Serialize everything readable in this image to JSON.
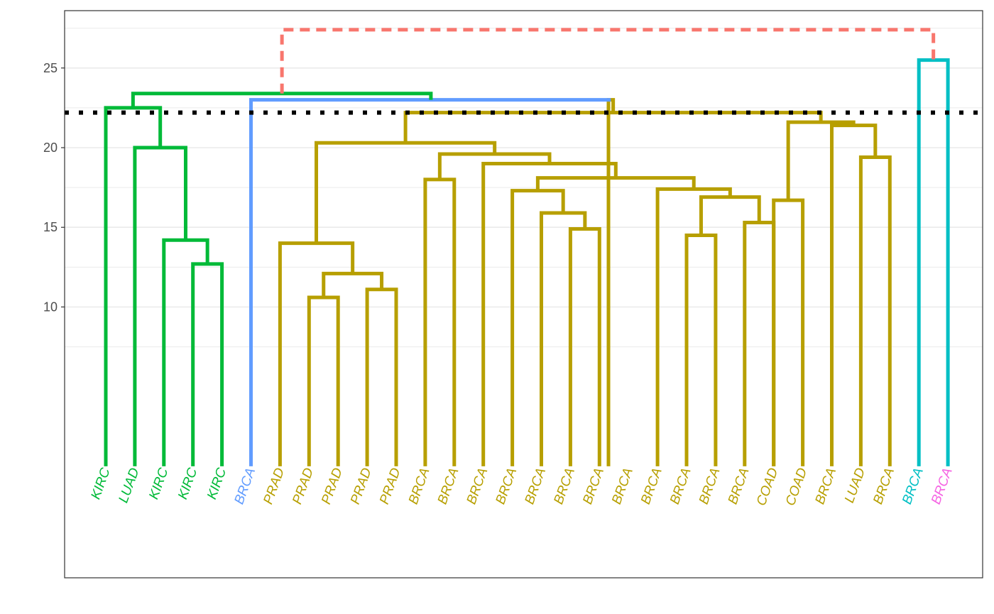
{
  "chart_data": {
    "type": "dendrogram",
    "ylim": [
      -7,
      28.6
    ],
    "y_ticks": [
      10,
      15,
      20,
      25
    ],
    "y_tick_labels": [
      "10",
      "15",
      "20",
      "25"
    ],
    "y_minor_grid": [
      7.5,
      12.5,
      17.5,
      22.5,
      27.5
    ],
    "grid": true,
    "cut_height": 22.2,
    "colors": {
      "green": "#00BA38",
      "blue": "#619CFF",
      "olive": "#B79F00",
      "cyan": "#00BFC4",
      "magenta": "#F564E3",
      "red": "#F8766D",
      "cut": "#000000"
    },
    "leaves": [
      {
        "label": "KIRC",
        "color": "green"
      },
      {
        "label": "LUAD",
        "color": "green"
      },
      {
        "label": "KIRC",
        "color": "green"
      },
      {
        "label": "KIRC",
        "color": "green"
      },
      {
        "label": "KIRC",
        "color": "green"
      },
      {
        "label": "BRCA",
        "color": "blue"
      },
      {
        "label": "PRAD",
        "color": "olive"
      },
      {
        "label": "PRAD",
        "color": "olive"
      },
      {
        "label": "PRAD",
        "color": "olive"
      },
      {
        "label": "PRAD",
        "color": "olive"
      },
      {
        "label": "PRAD",
        "color": "olive"
      },
      {
        "label": "BRCA",
        "color": "olive"
      },
      {
        "label": "BRCA",
        "color": "olive"
      },
      {
        "label": "BRCA",
        "color": "olive"
      },
      {
        "label": "BRCA",
        "color": "olive"
      },
      {
        "label": "BRCA",
        "color": "olive"
      },
      {
        "label": "BRCA",
        "color": "olive"
      },
      {
        "label": "BRCA",
        "color": "olive"
      },
      {
        "label": "BRCA",
        "color": "olive"
      },
      {
        "label": "BRCA",
        "color": "olive"
      },
      {
        "label": "BRCA",
        "color": "olive"
      },
      {
        "label": "BRCA",
        "color": "olive"
      },
      {
        "label": "BRCA",
        "color": "olive"
      },
      {
        "label": "COAD",
        "color": "olive"
      },
      {
        "label": "COAD",
        "color": "olive"
      },
      {
        "label": "BRCA",
        "color": "olive"
      },
      {
        "label": "LUAD",
        "color": "olive"
      },
      {
        "label": "BRCA",
        "color": "olive"
      },
      {
        "label": "BRCA",
        "color": "cyan"
      },
      {
        "label": "BRCA",
        "color": "magenta"
      }
    ],
    "merges": [
      {
        "a": "L4",
        "b": "L5",
        "height": 12.7,
        "color": "green"
      },
      {
        "a": "L3",
        "b": "N1",
        "height": 14.2,
        "color": "green"
      },
      {
        "a": "L2",
        "b": "N2",
        "height": 20.0,
        "color": "green"
      },
      {
        "a": "L1",
        "b": "N3",
        "height": 22.5,
        "color": "green"
      },
      {
        "a": "L8",
        "b": "L9",
        "height": 10.6,
        "color": "olive"
      },
      {
        "a": "L10",
        "b": "L11",
        "height": 11.1,
        "color": "olive"
      },
      {
        "a": "N5",
        "b": "N6",
        "height": 12.1,
        "color": "olive"
      },
      {
        "a": "L7",
        "b": "N7",
        "height": 14.0,
        "color": "olive"
      },
      {
        "a": "L12",
        "b": "L13",
        "height": 18.0,
        "color": "olive"
      },
      {
        "a": "L18",
        "b": "L19",
        "height": 14.9,
        "color": "olive"
      },
      {
        "a": "L17",
        "b": "N10",
        "height": 15.9,
        "color": "olive"
      },
      {
        "a": "L16",
        "b": "N11",
        "height": 17.3,
        "color": "olive"
      },
      {
        "a": "L22",
        "b": "L23",
        "height": 14.5,
        "color": "olive"
      },
      {
        "a": "L24",
        "b": "L25",
        "height": 15.3,
        "color": "olive"
      },
      {
        "a": "N13",
        "b": "N14",
        "height": 16.9,
        "color": "olive"
      },
      {
        "a": "L21",
        "b": "N15",
        "height": 17.4,
        "color": "olive"
      },
      {
        "a": "N12",
        "b": "N16",
        "height": 18.1,
        "color": "olive"
      },
      {
        "a": "L15",
        "b": "N17",
        "height": 19.0,
        "color": "olive"
      },
      {
        "a": "N9",
        "b": "N18",
        "height": 19.6,
        "color": "olive"
      },
      {
        "a": "N8",
        "b": "N19",
        "height": 20.3,
        "color": "olive"
      },
      {
        "a": "L24b",
        "b": "L25b",
        "height": 16.7,
        "color": "olive"
      },
      {
        "a": "L27",
        "b": "L28",
        "height": 19.4,
        "color": "olive"
      },
      {
        "a": "L26",
        "b": "N22",
        "height": 21.4,
        "color": "olive"
      },
      {
        "a": "N21",
        "b": "N23",
        "height": 21.6,
        "color": "olive"
      },
      {
        "a": "N20",
        "b": "N24",
        "height": 22.2,
        "color": "olive"
      },
      {
        "a": "L14",
        "b": "N25",
        "height": 23.0,
        "color": "olive"
      },
      {
        "a": "L6",
        "b": "N26",
        "height": 23.0,
        "color": "blue"
      },
      {
        "a": "N4",
        "b": "N27",
        "height": 23.4,
        "color": "green"
      },
      {
        "a": "L29",
        "b": "L30",
        "height": 25.5,
        "color": "cyan"
      },
      {
        "a": "N28",
        "b": "N29",
        "height": 27.4,
        "color": "red"
      }
    ]
  }
}
